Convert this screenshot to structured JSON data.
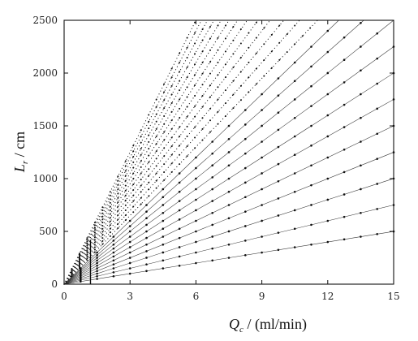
{
  "chart_data": {
    "type": "line",
    "xlabel": "Q_c / (ml/min)",
    "ylabel": "L_r / cm",
    "xlim": [
      0,
      15
    ],
    "ylim": [
      0,
      2500
    ],
    "x_ticks": [
      0,
      3,
      6,
      9,
      12,
      15
    ],
    "y_ticks": [
      0,
      500,
      1000,
      1500,
      2000,
      2500
    ],
    "x_tick_labels": [
      "0",
      "3",
      "6",
      "9",
      "12",
      "15"
    ],
    "y_tick_labels": [
      "0",
      "500",
      "1000",
      "1500",
      "2000",
      "2500"
    ],
    "grid": false,
    "legend": "none",
    "line_style": "dotted rays from origin with markers",
    "color": "#111111",
    "series": [
      {
        "slope": 33.3
      },
      {
        "slope": 50
      },
      {
        "slope": 66.7
      },
      {
        "slope": 83.3
      },
      {
        "slope": 100
      },
      {
        "slope": 116.7
      },
      {
        "slope": 133.3
      },
      {
        "slope": 150
      },
      {
        "slope": 166.7
      },
      {
        "slope": 183.3
      },
      {
        "slope": 200
      },
      {
        "slope": 216.7
      },
      {
        "slope": 233.3
      },
      {
        "slope": 250
      },
      {
        "slope": 266.7
      },
      {
        "slope": 283.3
      },
      {
        "slope": 300
      },
      {
        "slope": 316.7
      },
      {
        "slope": 333.3
      },
      {
        "slope": 350
      },
      {
        "slope": 366.7
      },
      {
        "slope": 383.3
      },
      {
        "slope": 400
      },
      {
        "slope": 416.7
      }
    ],
    "vertical_bar": {
      "x": 1.2,
      "y": [
        0,
        420
      ]
    }
  }
}
